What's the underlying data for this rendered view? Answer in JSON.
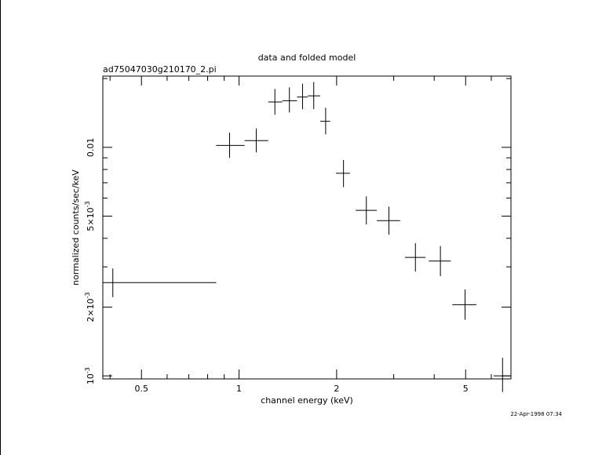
{
  "chart_data": {
    "type": "scatter",
    "title": "data and folded model",
    "subtitle": "ad75047030g210170_2.pi",
    "xlabel": "channel energy (keV)",
    "ylabel": "normalized counts/sec/keV",
    "footer": "22-Apr-1998 07:34",
    "x_scale": "log",
    "y_scale": "log",
    "xlim": [
      0.38,
      6.9
    ],
    "ylim": [
      0.00097,
      0.0205
    ],
    "grid": false,
    "x_ticks": [
      {
        "value": 0.5,
        "label": "0.5"
      },
      {
        "value": 1,
        "label": "1"
      },
      {
        "value": 2,
        "label": "2"
      },
      {
        "value": 5,
        "label": "5"
      }
    ],
    "y_ticks": [
      {
        "value": 0.001,
        "label": "10",
        "exp": "-3"
      },
      {
        "value": 0.002,
        "label": "2×10",
        "exp": "-3"
      },
      {
        "value": 0.005,
        "label": "5×10",
        "exp": "-3"
      },
      {
        "value": 0.01,
        "label": "0.01",
        "exp": ""
      }
    ],
    "series": [
      {
        "points": [
          {
            "x": 0.408,
            "xlo": 0.38,
            "xhi": 0.85,
            "y": 0.00256,
            "ylo": 0.00221,
            "yhi": 0.00295
          },
          {
            "x": 0.935,
            "xlo": 0.85,
            "xhi": 1.04,
            "y": 0.0102,
            "ylo": 0.009,
            "yhi": 0.0116
          },
          {
            "x": 1.13,
            "xlo": 1.04,
            "xhi": 1.23,
            "y": 0.0107,
            "ylo": 0.0095,
            "yhi": 0.0121
          },
          {
            "x": 1.29,
            "xlo": 1.23,
            "xhi": 1.36,
            "y": 0.0158,
            "ylo": 0.0139,
            "yhi": 0.018
          },
          {
            "x": 1.43,
            "xlo": 1.36,
            "xhi": 1.51,
            "y": 0.016,
            "ylo": 0.0142,
            "yhi": 0.0183
          },
          {
            "x": 1.57,
            "xlo": 1.51,
            "xhi": 1.63,
            "y": 0.0166,
            "ylo": 0.0147,
            "yhi": 0.019
          },
          {
            "x": 1.7,
            "xlo": 1.63,
            "xhi": 1.78,
            "y": 0.0168,
            "ylo": 0.0147,
            "yhi": 0.0193
          },
          {
            "x": 1.85,
            "xlo": 1.78,
            "xhi": 1.91,
            "y": 0.013,
            "ylo": 0.0114,
            "yhi": 0.0149
          },
          {
            "x": 2.1,
            "xlo": 1.99,
            "xhi": 2.2,
            "y": 0.0077,
            "ylo": 0.0067,
            "yhi": 0.0088
          },
          {
            "x": 2.47,
            "xlo": 2.29,
            "xhi": 2.66,
            "y": 0.0053,
            "ylo": 0.0046,
            "yhi": 0.0061
          },
          {
            "x": 2.9,
            "xlo": 2.66,
            "xhi": 3.14,
            "y": 0.00478,
            "ylo": 0.00415,
            "yhi": 0.0055
          },
          {
            "x": 3.5,
            "xlo": 3.25,
            "xhi": 3.76,
            "y": 0.0033,
            "ylo": 0.00286,
            "yhi": 0.00381
          },
          {
            "x": 4.18,
            "xlo": 3.85,
            "xhi": 4.5,
            "y": 0.00318,
            "ylo": 0.00273,
            "yhi": 0.0037
          },
          {
            "x": 4.98,
            "xlo": 4.55,
            "xhi": 5.4,
            "y": 0.00205,
            "ylo": 0.00176,
            "yhi": 0.00239
          },
          {
            "x": 6.5,
            "xlo": 6.1,
            "xhi": 6.9,
            "y": 0.001,
            "ylo": 0.00085,
            "yhi": 0.0012
          }
        ]
      }
    ]
  }
}
